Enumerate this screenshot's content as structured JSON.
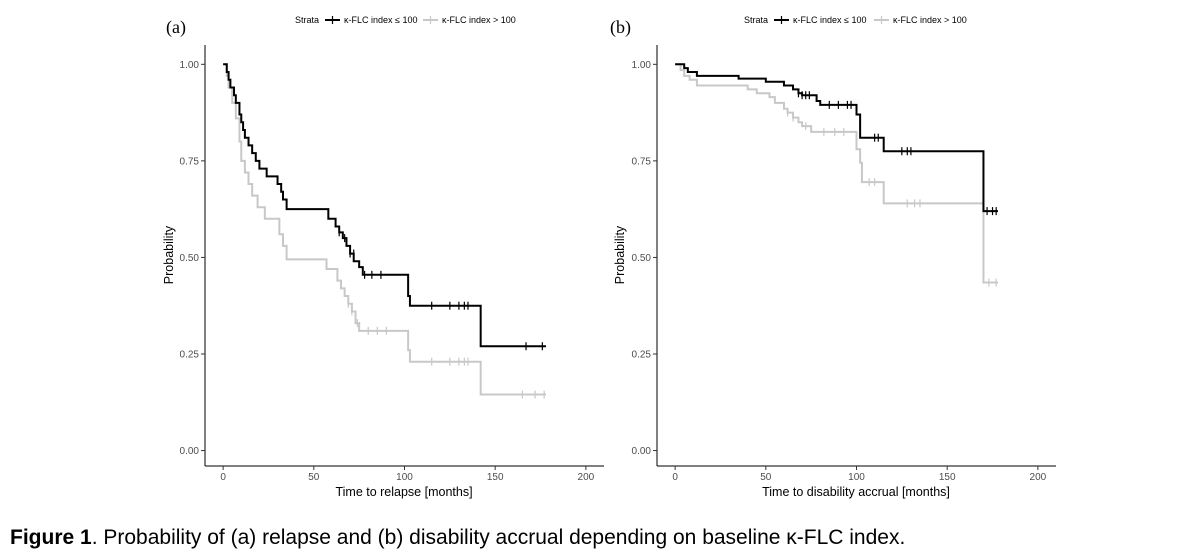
{
  "colors": {
    "low": "#000000",
    "high": "#c8c8c8"
  },
  "caption": {
    "lead": "Figure 1",
    "text": ". Probability of (a) relapse and (b) disability accrual depending on baseline κ-FLC index."
  },
  "chart_data": [
    {
      "type": "line",
      "panel_label": "(a)",
      "xlabel": "Time to relapse [months]",
      "ylabel": "Probability",
      "xlim": [
        -10,
        210
      ],
      "ylim": [
        -0.04,
        1.05
      ],
      "xticks": [
        0,
        50,
        100,
        150,
        200
      ],
      "xtick_labels": [
        "0",
        "50",
        "100",
        "150",
        "200"
      ],
      "yticks": [
        0,
        0.25,
        0.5,
        0.75,
        1.0
      ],
      "ytick_labels": [
        "0.00",
        "0.25",
        "0.50",
        "0.75",
        "1.00"
      ],
      "legend": {
        "title": "Strata",
        "labels": [
          "κ-FLC index ≤ 100",
          "κ-FLC index > 100"
        ],
        "position": "top"
      },
      "series": [
        {
          "name": "κ-FLC index ≤ 100",
          "key": "low",
          "steps": [
            [
              0,
              1.0
            ],
            [
              2,
              0.98
            ],
            [
              3,
              0.96
            ],
            [
              4,
              0.94
            ],
            [
              6,
              0.92
            ],
            [
              7,
              0.9
            ],
            [
              9,
              0.87
            ],
            [
              10,
              0.85
            ],
            [
              11,
              0.83
            ],
            [
              12,
              0.81
            ],
            [
              14,
              0.79
            ],
            [
              16,
              0.77
            ],
            [
              18,
              0.75
            ],
            [
              20,
              0.73
            ],
            [
              24,
              0.71
            ],
            [
              30,
              0.69
            ],
            [
              32,
              0.67
            ],
            [
              33,
              0.65
            ],
            [
              35,
              0.625
            ],
            [
              58,
              0.6
            ],
            [
              62,
              0.58
            ],
            [
              64,
              0.565
            ],
            [
              66,
              0.55
            ],
            [
              68,
              0.53
            ],
            [
              70,
              0.51
            ],
            [
              72,
              0.49
            ],
            [
              75,
              0.475
            ],
            [
              77,
              0.455
            ],
            [
              102,
              0.4
            ],
            [
              103,
              0.375
            ],
            [
              142,
              0.27
            ],
            [
              178,
              0.27
            ]
          ],
          "censored": [
            [
              64,
              0.565
            ],
            [
              67,
              0.55
            ],
            [
              70,
              0.51
            ],
            [
              72,
              0.51
            ],
            [
              78,
              0.455
            ],
            [
              82,
              0.455
            ],
            [
              87,
              0.455
            ],
            [
              115,
              0.375
            ],
            [
              125,
              0.375
            ],
            [
              130,
              0.375
            ],
            [
              133,
              0.375
            ],
            [
              135,
              0.375
            ],
            [
              167,
              0.27
            ],
            [
              176,
              0.27
            ]
          ]
        },
        {
          "name": "κ-FLC index > 100",
          "key": "high",
          "steps": [
            [
              0,
              1.0
            ],
            [
              2,
              0.97
            ],
            [
              3,
              0.94
            ],
            [
              5,
              0.9
            ],
            [
              7,
              0.86
            ],
            [
              9,
              0.8
            ],
            [
              10,
              0.75
            ],
            [
              12,
              0.72
            ],
            [
              14,
              0.69
            ],
            [
              16,
              0.66
            ],
            [
              19,
              0.63
            ],
            [
              23,
              0.6
            ],
            [
              31,
              0.56
            ],
            [
              33,
              0.53
            ],
            [
              35,
              0.495
            ],
            [
              57,
              0.47
            ],
            [
              63,
              0.44
            ],
            [
              65,
              0.42
            ],
            [
              67,
              0.4
            ],
            [
              69,
              0.38
            ],
            [
              71,
              0.36
            ],
            [
              73,
              0.33
            ],
            [
              75,
              0.31
            ],
            [
              102,
              0.26
            ],
            [
              103,
              0.23
            ],
            [
              142,
              0.145
            ],
            [
              178,
              0.145
            ]
          ],
          "censored": [
            [
              69,
              0.38
            ],
            [
              71,
              0.36
            ],
            [
              74,
              0.33
            ],
            [
              80,
              0.31
            ],
            [
              85,
              0.31
            ],
            [
              90,
              0.31
            ],
            [
              115,
              0.23
            ],
            [
              125,
              0.23
            ],
            [
              130,
              0.23
            ],
            [
              133,
              0.23
            ],
            [
              135,
              0.23
            ],
            [
              165,
              0.145
            ],
            [
              172,
              0.145
            ],
            [
              177,
              0.145
            ]
          ]
        }
      ]
    },
    {
      "type": "line",
      "panel_label": "(b)",
      "xlabel": "Time to disability accrual [months]",
      "ylabel": "Probability",
      "xlim": [
        -10,
        210
      ],
      "ylim": [
        -0.04,
        1.05
      ],
      "xticks": [
        0,
        50,
        100,
        150,
        200
      ],
      "xtick_labels": [
        "0",
        "50",
        "100",
        "150",
        "200"
      ],
      "yticks": [
        0,
        0.25,
        0.5,
        0.75,
        1.0
      ],
      "ytick_labels": [
        "0.00",
        "0.25",
        "0.50",
        "0.75",
        "1.00"
      ],
      "legend": {
        "title": "Strata",
        "labels": [
          "κ-FLC index ≤ 100",
          "κ-FLC index > 100"
        ],
        "position": "top"
      },
      "series": [
        {
          "name": "κ-FLC index ≤ 100",
          "key": "low",
          "steps": [
            [
              0,
              1.0
            ],
            [
              5,
              0.99
            ],
            [
              7,
              0.98
            ],
            [
              12,
              0.97
            ],
            [
              35,
              0.963
            ],
            [
              50,
              0.955
            ],
            [
              60,
              0.945
            ],
            [
              65,
              0.935
            ],
            [
              68,
              0.925
            ],
            [
              70,
              0.92
            ],
            [
              78,
              0.905
            ],
            [
              80,
              0.895
            ],
            [
              100,
              0.87
            ],
            [
              102,
              0.81
            ],
            [
              115,
              0.775
            ],
            [
              170,
              0.62
            ],
            [
              178,
              0.62
            ]
          ],
          "censored": [
            [
              68,
              0.925
            ],
            [
              70,
              0.92
            ],
            [
              72,
              0.92
            ],
            [
              74,
              0.92
            ],
            [
              85,
              0.895
            ],
            [
              90,
              0.895
            ],
            [
              95,
              0.895
            ],
            [
              97,
              0.895
            ],
            [
              110,
              0.81
            ],
            [
              112,
              0.81
            ],
            [
              125,
              0.775
            ],
            [
              128,
              0.775
            ],
            [
              130,
              0.775
            ],
            [
              172,
              0.62
            ],
            [
              175,
              0.62
            ],
            [
              177,
              0.62
            ]
          ]
        },
        {
          "name": "κ-FLC index > 100",
          "key": "high",
          "steps": [
            [
              0,
              1.0
            ],
            [
              3,
              0.985
            ],
            [
              5,
              0.97
            ],
            [
              8,
              0.96
            ],
            [
              12,
              0.945
            ],
            [
              40,
              0.935
            ],
            [
              45,
              0.925
            ],
            [
              52,
              0.915
            ],
            [
              55,
              0.9
            ],
            [
              60,
              0.885
            ],
            [
              62,
              0.875
            ],
            [
              65,
              0.862
            ],
            [
              68,
              0.85
            ],
            [
              70,
              0.84
            ],
            [
              75,
              0.825
            ],
            [
              100,
              0.78
            ],
            [
              102,
              0.745
            ],
            [
              103,
              0.695
            ],
            [
              115,
              0.64
            ],
            [
              170,
              0.435
            ],
            [
              178,
              0.435
            ]
          ],
          "censored": [
            [
              62,
              0.875
            ],
            [
              65,
              0.862
            ],
            [
              72,
              0.84
            ],
            [
              82,
              0.825
            ],
            [
              88,
              0.825
            ],
            [
              93,
              0.825
            ],
            [
              107,
              0.695
            ],
            [
              110,
              0.695
            ],
            [
              128,
              0.64
            ],
            [
              132,
              0.64
            ],
            [
              135,
              0.64
            ],
            [
              173,
              0.435
            ],
            [
              177,
              0.435
            ]
          ]
        }
      ]
    }
  ]
}
